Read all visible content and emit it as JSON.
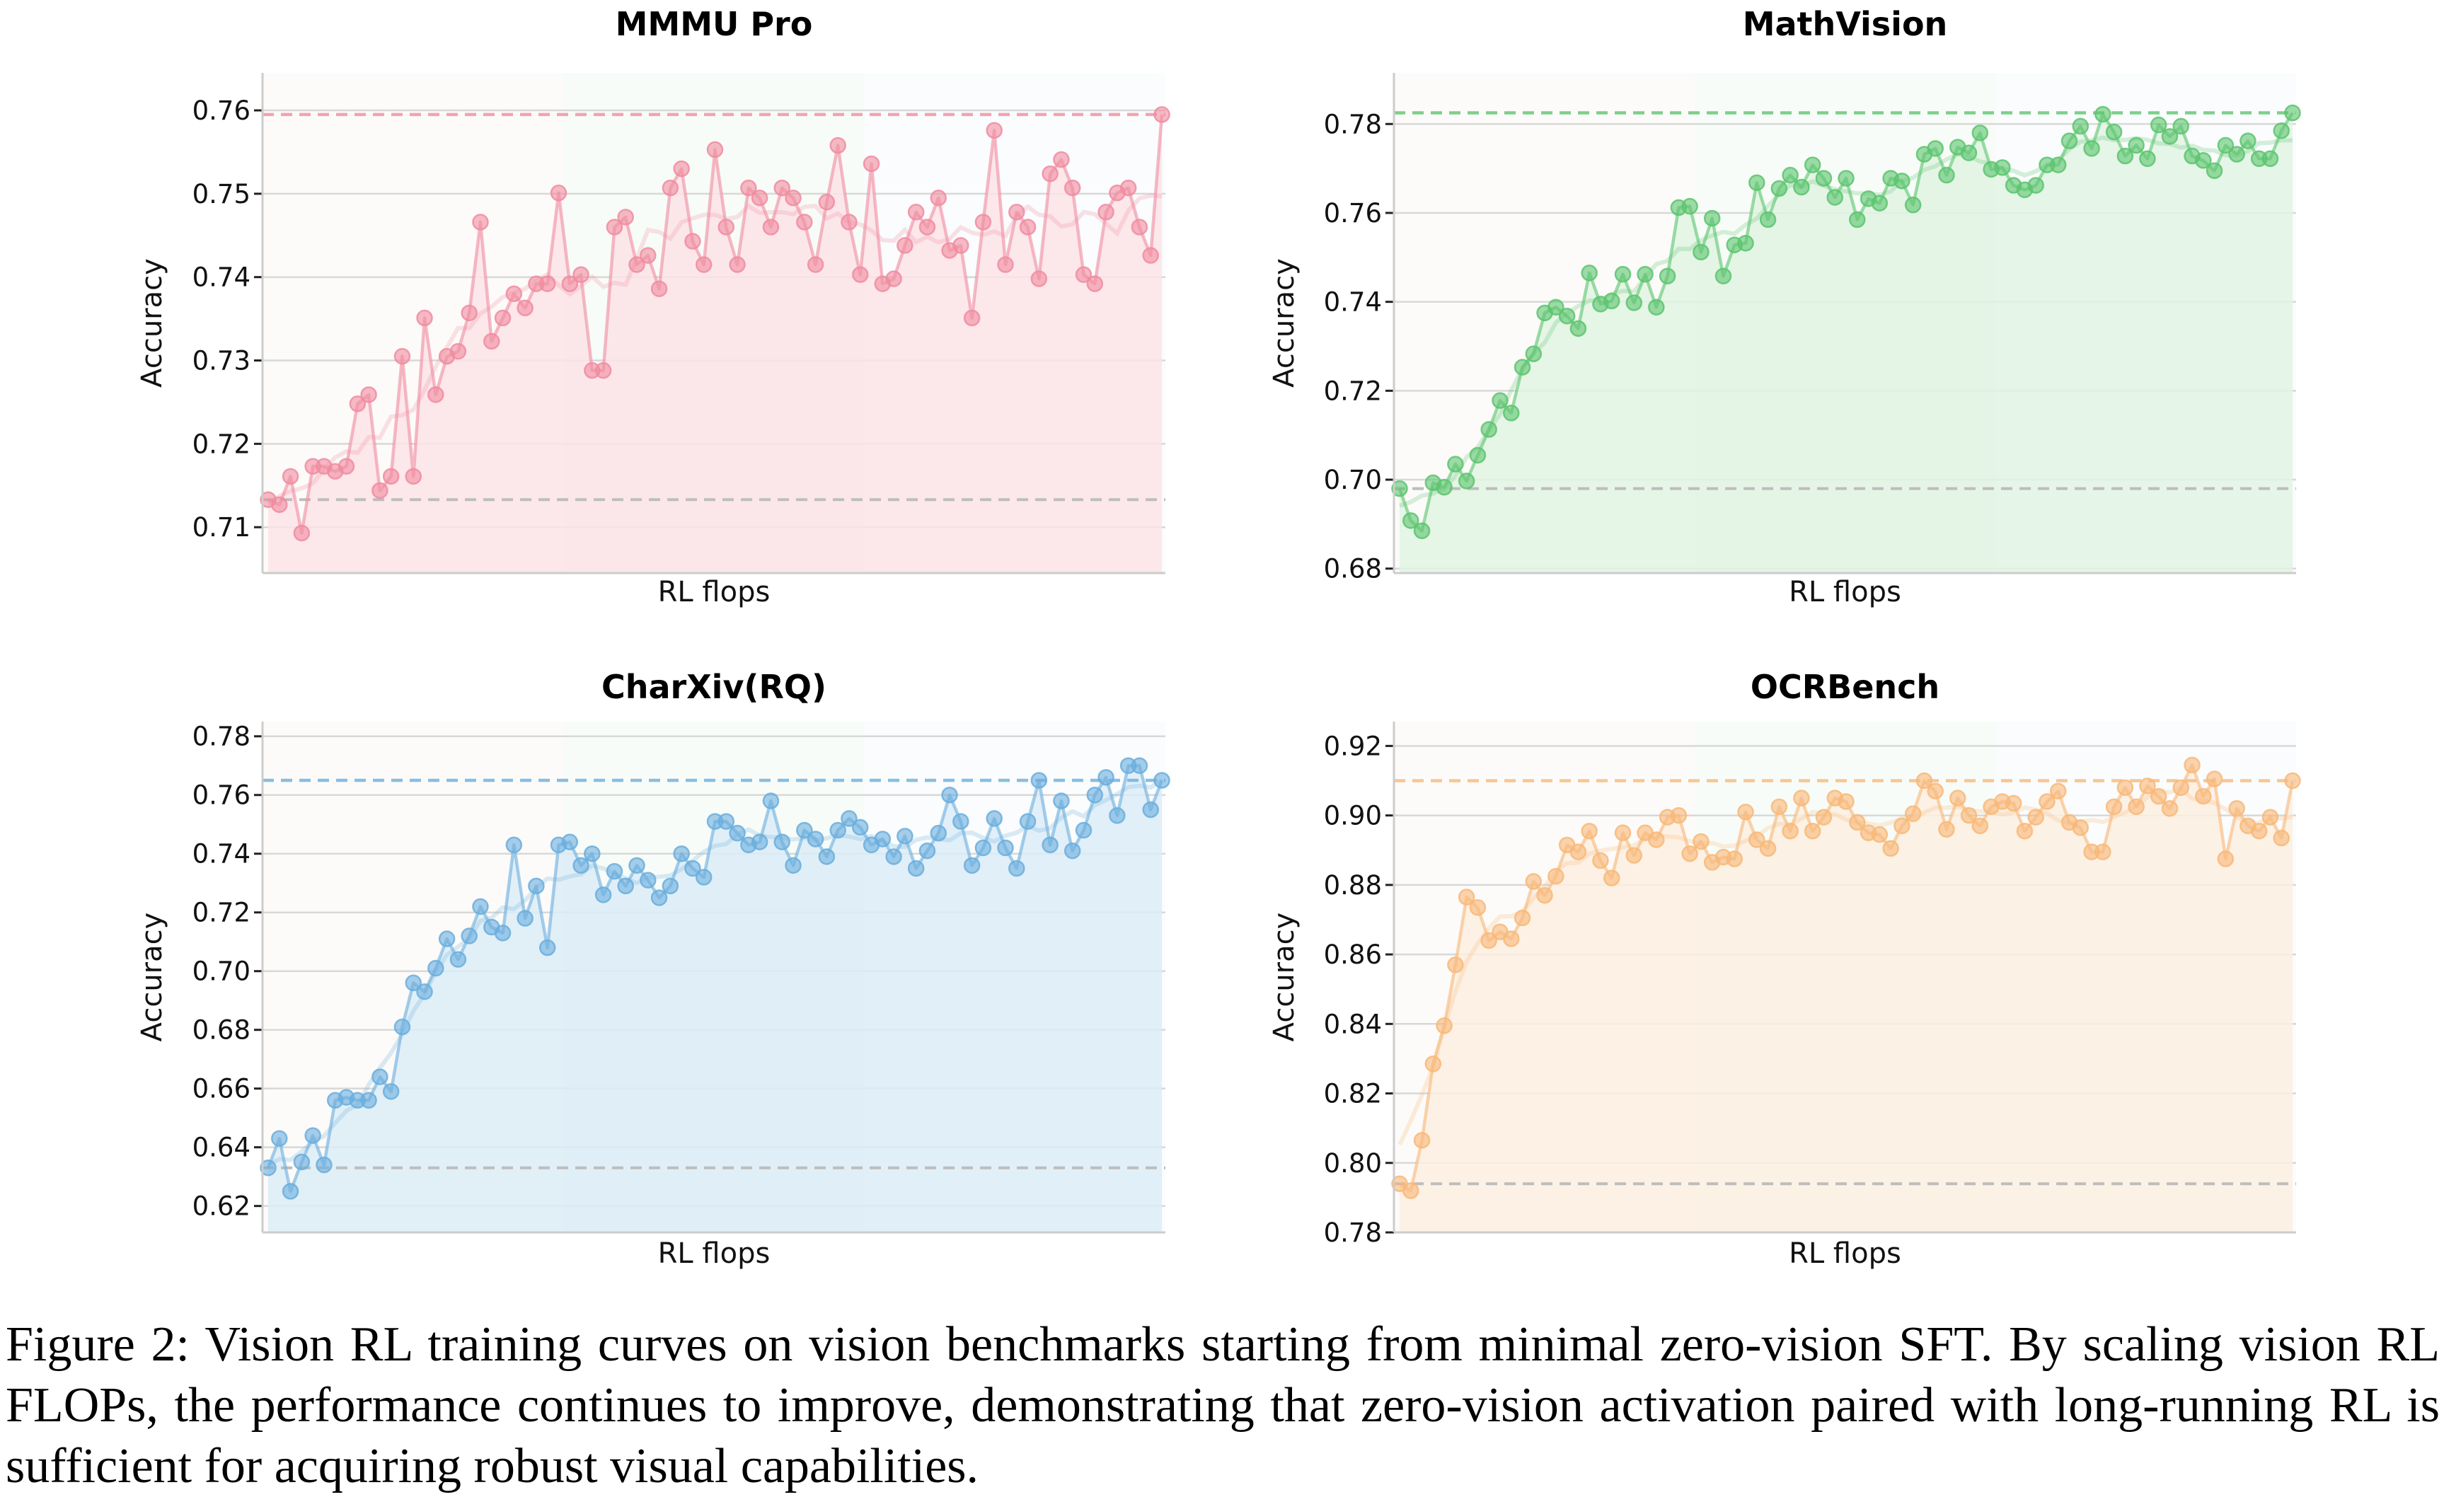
{
  "caption": "Figure 2: Vision RL training curves on vision benchmarks starting from minimal zero-vision SFT. By scaling vision RL FLOPs, the performance continues to improve, demonstrating that zero-vision activation paired with long-running RL is sufficient for acquiring robust visual capabilities.",
  "chart_data": [
    {
      "type": "line",
      "title": "MMMU Pro",
      "xlabel": "RL flops",
      "ylabel": "Accuracy",
      "ylim": [
        0.7045,
        0.7645
      ],
      "yticks": [
        0.71,
        0.72,
        0.73,
        0.74,
        0.75,
        0.76
      ],
      "ytick_labels": [
        "0.71",
        "0.72",
        "0.73",
        "0.74",
        "0.75",
        "0.76"
      ],
      "grid": true,
      "color": "#f08ca0",
      "fill": "#fbe3e8",
      "baseline": 0.7133,
      "best": 0.7595,
      "values": [
        0.7133,
        0.7127,
        0.7161,
        0.7093,
        0.7173,
        0.7173,
        0.7167,
        0.7173,
        0.7248,
        0.7259,
        0.7144,
        0.7161,
        0.7305,
        0.7161,
        0.7351,
        0.7259,
        0.7305,
        0.7311,
        0.7357,
        0.7466,
        0.7323,
        0.7351,
        0.738,
        0.7363,
        0.7392,
        0.7392,
        0.7501,
        0.7392,
        0.7403,
        0.7288,
        0.7288,
        0.746,
        0.7472,
        0.7415,
        0.7426,
        0.7386,
        0.7507,
        0.753,
        0.7443,
        0.7415,
        0.7553,
        0.746,
        0.7415,
        0.7507,
        0.7495,
        0.746,
        0.7507,
        0.7495,
        0.7466,
        0.7415,
        0.749,
        0.7558,
        0.7466,
        0.7403,
        0.7536,
        0.7392,
        0.7398,
        0.7438,
        0.7478,
        0.746,
        0.7495,
        0.7432,
        0.7438,
        0.7351,
        0.7466,
        0.7576,
        0.7415,
        0.7478,
        0.746,
        0.7398,
        0.7524,
        0.7541,
        0.7507,
        0.7403,
        0.7392,
        0.7478,
        0.7501,
        0.7507,
        0.746,
        0.7426,
        0.7595
      ]
    },
    {
      "type": "line",
      "title": "MathVision",
      "xlabel": "RL flops",
      "ylabel": "Accuracy",
      "ylim": [
        0.679,
        0.7915
      ],
      "yticks": [
        0.68,
        0.7,
        0.72,
        0.74,
        0.76,
        0.78
      ],
      "ytick_labels": [
        "0.68",
        "0.70",
        "0.72",
        "0.74",
        "0.76",
        "0.78"
      ],
      "grid": true,
      "color": "#5cc46e",
      "fill": "#e1f3e3",
      "baseline": 0.698,
      "best": 0.7825,
      "values": [
        0.698,
        0.6908,
        0.6885,
        0.6993,
        0.6983,
        0.7035,
        0.6997,
        0.7055,
        0.7113,
        0.7178,
        0.715,
        0.7253,
        0.7283,
        0.7375,
        0.7388,
        0.7368,
        0.734,
        0.7465,
        0.7395,
        0.7402,
        0.7462,
        0.7398,
        0.7462,
        0.7388,
        0.7458,
        0.7612,
        0.7615,
        0.7512,
        0.7588,
        0.7458,
        0.7528,
        0.7532,
        0.7668,
        0.7585,
        0.7655,
        0.7685,
        0.7658,
        0.7708,
        0.7678,
        0.7635,
        0.7678,
        0.7585,
        0.7632,
        0.7622,
        0.7678,
        0.7672,
        0.7618,
        0.7732,
        0.7745,
        0.7685,
        0.7748,
        0.7735,
        0.778,
        0.7698,
        0.7702,
        0.7662,
        0.7652,
        0.7662,
        0.7708,
        0.7708,
        0.7762,
        0.7795,
        0.7745,
        0.7822,
        0.7782,
        0.7728,
        0.7752,
        0.7722,
        0.7798,
        0.7772,
        0.7795,
        0.7728,
        0.7718,
        0.7695,
        0.7752,
        0.7732,
        0.7762,
        0.7722,
        0.7722,
        0.7785,
        0.7825
      ]
    },
    {
      "type": "line",
      "title": "CharXiv(RQ)",
      "xlabel": "RL flops",
      "ylabel": "Accuracy",
      "ylim": [
        0.611,
        0.785
      ],
      "yticks": [
        0.62,
        0.64,
        0.66,
        0.68,
        0.7,
        0.72,
        0.74,
        0.76,
        0.78
      ],
      "ytick_labels": [
        "0.62",
        "0.64",
        "0.66",
        "0.68",
        "0.70",
        "0.72",
        "0.74",
        "0.76",
        "0.78"
      ],
      "grid": true,
      "color": "#6aaedd",
      "fill": "#dcecf7",
      "baseline": 0.633,
      "best": 0.765,
      "values": [
        0.633,
        0.643,
        0.625,
        0.635,
        0.644,
        0.634,
        0.656,
        0.657,
        0.656,
        0.656,
        0.664,
        0.659,
        0.681,
        0.696,
        0.693,
        0.701,
        0.711,
        0.704,
        0.712,
        0.722,
        0.715,
        0.713,
        0.743,
        0.718,
        0.729,
        0.708,
        0.743,
        0.744,
        0.736,
        0.74,
        0.726,
        0.734,
        0.729,
        0.736,
        0.731,
        0.725,
        0.729,
        0.74,
        0.735,
        0.732,
        0.751,
        0.751,
        0.747,
        0.743,
        0.744,
        0.758,
        0.744,
        0.736,
        0.748,
        0.745,
        0.739,
        0.748,
        0.752,
        0.749,
        0.743,
        0.745,
        0.739,
        0.746,
        0.735,
        0.741,
        0.747,
        0.76,
        0.751,
        0.736,
        0.742,
        0.752,
        0.742,
        0.735,
        0.751,
        0.765,
        0.743,
        0.758,
        0.741,
        0.748,
        0.76,
        0.766,
        0.753,
        0.77,
        0.77,
        0.755,
        0.765
      ]
    },
    {
      "type": "line",
      "title": "OCRBench",
      "xlabel": "RL flops",
      "ylabel": "Accuracy",
      "ylim": [
        0.78,
        0.927
      ],
      "yticks": [
        0.78,
        0.8,
        0.82,
        0.84,
        0.86,
        0.88,
        0.9,
        0.92
      ],
      "ytick_labels": [
        "0.78",
        "0.80",
        "0.82",
        "0.84",
        "0.86",
        "0.88",
        "0.90",
        "0.92"
      ],
      "grid": true,
      "color": "#f8b878",
      "fill": "#fbeee0",
      "baseline": 0.794,
      "best": 0.91,
      "values": [
        0.794,
        0.792,
        0.8065,
        0.8285,
        0.8395,
        0.857,
        0.8765,
        0.8735,
        0.864,
        0.8665,
        0.8645,
        0.8705,
        0.881,
        0.877,
        0.8825,
        0.8915,
        0.8895,
        0.8955,
        0.887,
        0.882,
        0.895,
        0.8885,
        0.895,
        0.893,
        0.8995,
        0.9,
        0.889,
        0.8925,
        0.8865,
        0.888,
        0.8875,
        0.901,
        0.893,
        0.8905,
        0.9025,
        0.8955,
        0.905,
        0.8955,
        0.8995,
        0.905,
        0.904,
        0.898,
        0.895,
        0.8945,
        0.8905,
        0.897,
        0.9005,
        0.91,
        0.907,
        0.896,
        0.905,
        0.9,
        0.897,
        0.9025,
        0.904,
        0.9035,
        0.8955,
        0.8995,
        0.904,
        0.907,
        0.898,
        0.8965,
        0.8895,
        0.8895,
        0.9025,
        0.908,
        0.9025,
        0.9085,
        0.9055,
        0.902,
        0.908,
        0.9145,
        0.9055,
        0.9105,
        0.8875,
        0.902,
        0.897,
        0.8955,
        0.8995,
        0.8935,
        0.91
      ]
    }
  ]
}
